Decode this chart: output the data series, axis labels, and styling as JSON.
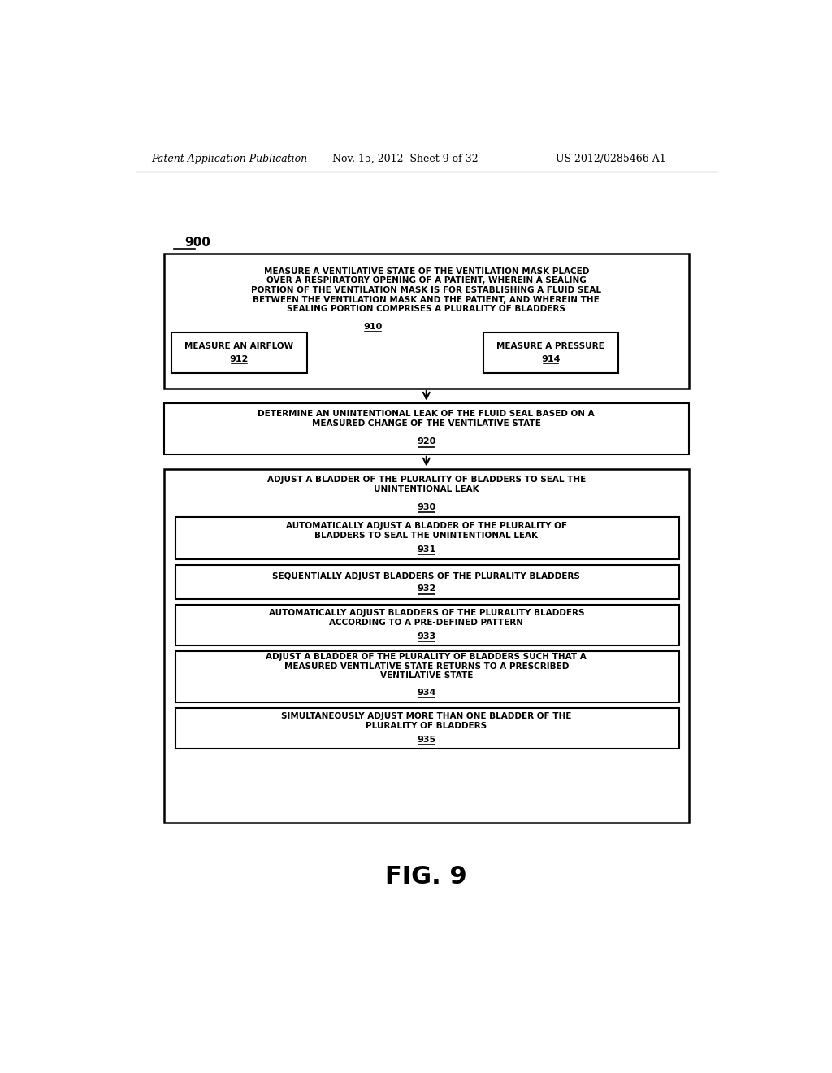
{
  "header_left": "Patent Application Publication",
  "header_mid": "Nov. 15, 2012  Sheet 9 of 32",
  "header_right": "US 2012/0285466 A1",
  "fig_label": "FIG. 9",
  "diagram_label": "900"
}
